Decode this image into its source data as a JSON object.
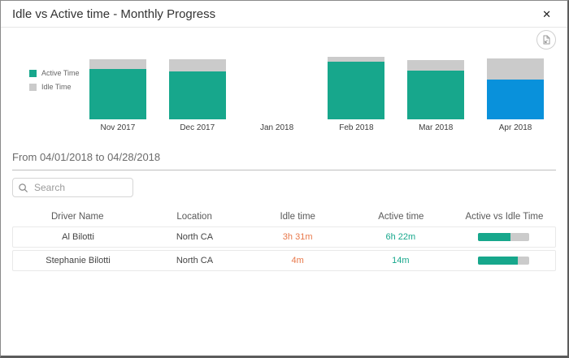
{
  "dialog": {
    "title": "Idle vs Active time - Monthly Progress",
    "close_glyph": "✕"
  },
  "chart_data": {
    "type": "bar",
    "stacked": true,
    "categories": [
      "Nov 2017",
      "Dec 2017",
      "Jan 2018",
      "Feb 2018",
      "Mar 2018",
      "Apr 2018"
    ],
    "series": [
      {
        "name": "Active Time",
        "color": "#17A78C",
        "values": [
          62,
          59,
          0,
          71,
          60,
          49
        ]
      },
      {
        "name": "Idle Time",
        "color": "#CBCBCB",
        "values": [
          12,
          15,
          0,
          6,
          13,
          26
        ]
      }
    ],
    "highlight": {
      "category": "Apr 2018",
      "series": "Active Time",
      "color": "#0991DB"
    },
    "legend_position": "left",
    "value_unit": "relative-height-px",
    "selected_month": "Apr 2018"
  },
  "filters": {
    "date_range": "From 04/01/2018 to 04/28/2018",
    "search_placeholder": "Search"
  },
  "table": {
    "columns": [
      "Driver Name",
      "Location",
      "Idle time",
      "Active time",
      "Active vs Idle Time"
    ],
    "idle_color": "#E8784A",
    "active_color": "#17A78C",
    "bar_fill": "#17A78C",
    "bar_bg": "#CBCBCB",
    "rows": [
      {
        "driver": "Al Bilotti",
        "location": "North CA",
        "idle": "3h 31m",
        "active": "6h 22m",
        "active_pct": 64
      },
      {
        "driver": "Stephanie Bilotti",
        "location": "North CA",
        "idle": "4m",
        "active": "14m",
        "active_pct": 78
      }
    ]
  }
}
